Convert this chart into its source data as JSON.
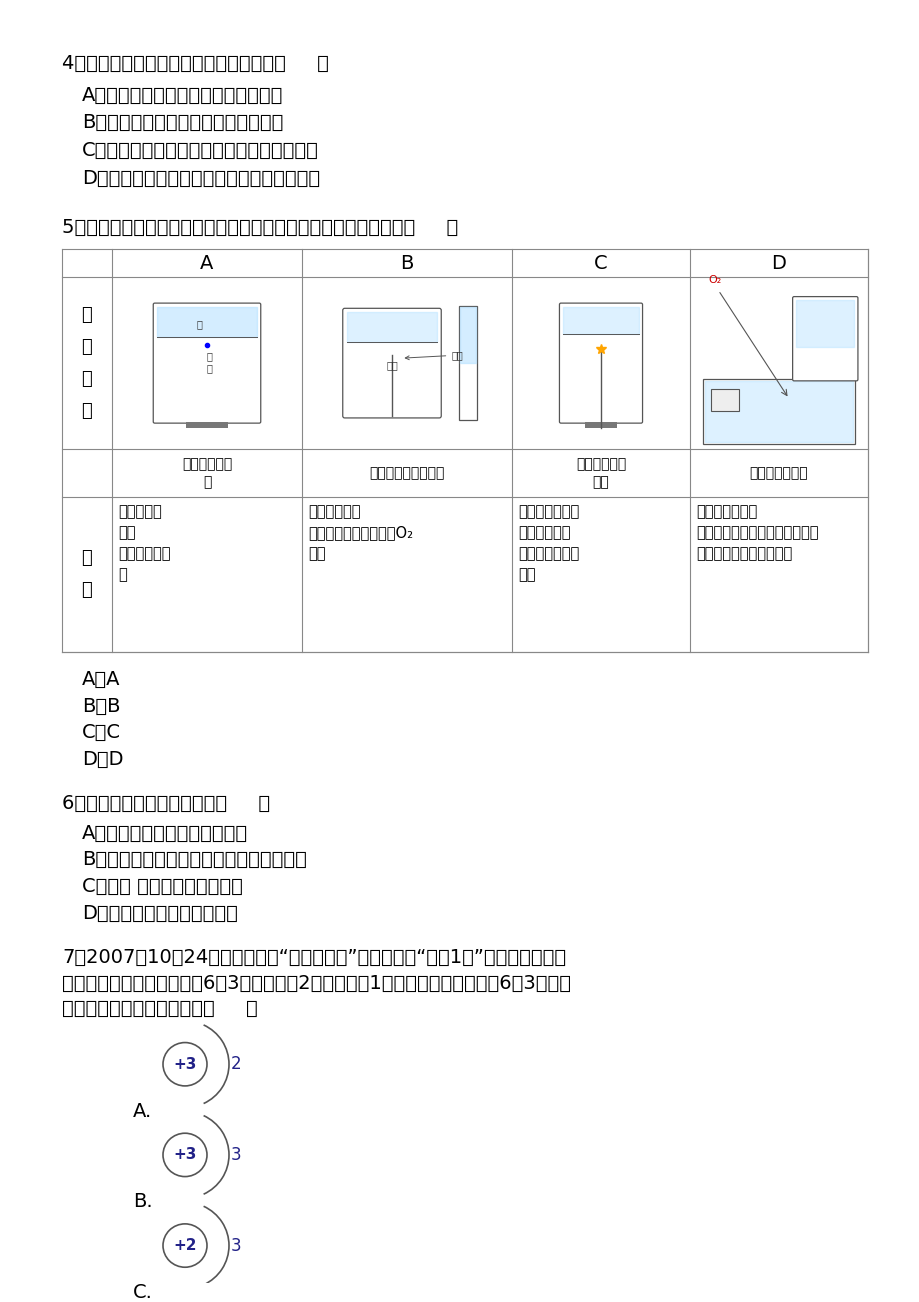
{
  "background_color": "#ffffff",
  "text_color": "#000000",
  "q4_title": "4．下列关于燃烧现象的描述，正确的是（     ）",
  "q4_options": [
    "A．木炭在氧气中燃烧产生大量的白烟",
    "B．红磷在空气中燃烧产生大量的白雾",
    "C．硫粉在氧气中燃烧产生明亮的蓝紫色火焰",
    "D．鐵丝在空气中燃烧生成黑色的四氧化三鐵"
  ],
  "q5_title": "5．下列实验指定容器中的水，其解释没有体现水的主要作用的是（     ）",
  "table_headers": [
    "A",
    "B",
    "C",
    "D"
  ],
  "table_row1_label": "实\n验\n装\n置",
  "table_img_captions_A": "硫在氧气中燃\n烧",
  "table_img_captions_B": "测定空气中氧气含量",
  "table_img_captions_C": "鐵丝在氧气中\n燃烧",
  "table_img_captions_D": "排水法收集氧气",
  "table_row3_label": "解\n释",
  "exp_A": "集气瓶中的\n水：\n吸收放出的热\n量",
  "exp_B": "量筒中的水：\n通过水体积的变化得出O₂\n体积",
  "exp_C": "集气瓶中的水：\n冷却溅落融熳\n物，防止集气瓶\n炸裂",
  "exp_D": "集气瓶中的水：\n水先将集气瓶内的空气排净，后\n便于观察氧气何时收集满",
  "q5_answers": [
    "A．A",
    "B．B",
    "C．C",
    "D．D"
  ],
  "q6_title": "6．分子与原子的本质区别是（     ）",
  "q6_options": [
    "A．分子是构成物质的一种微粒",
    "B．在化学变化中，分子可分，原子不可分",
    "C．分子 间有空隙，原子没有",
    "D．分子质量大，原子质量小"
  ],
  "q7_line1": "7．2007年10月24日，我国使用“长征三号甲”运载火箭将“娥娥1号”送上月球轨道，",
  "q7_line2": "其任务之一是探测月球上氖6－3（质子数为2，中子数为1的原子）资源．下列氖6－3原子的",
  "q7_line3": "原子结构示意图中正确的是（     ）",
  "q7_atom_labels": [
    "+3",
    "+3",
    "+2"
  ],
  "q7_atom_electrons": [
    "2",
    "3",
    "3"
  ],
  "q7_option_letters": [
    "A.",
    "B.",
    "C."
  ]
}
